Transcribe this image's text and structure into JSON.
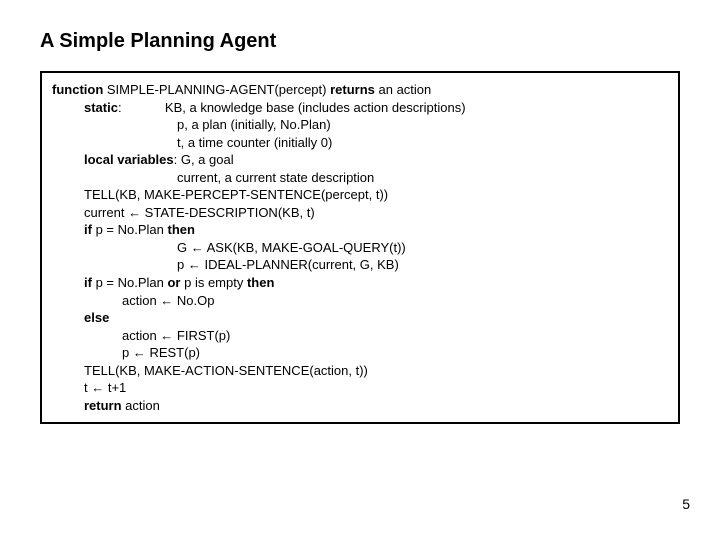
{
  "title": "A Simple Planning Agent",
  "page_number": "5",
  "box": {
    "border_color": "#000000",
    "background": "#ffffff"
  },
  "algo": {
    "l1a": "function",
    "l1b": " SIMPLE-PLANNING-AGENT(percept) ",
    "l1c": "returns",
    "l1d": " an action",
    "l2a": "static",
    "l2b": ":            KB, a knowledge base (includes action descriptions)",
    "l3": "p, a plan (initially, No.Plan)",
    "l4": "t, a time counter (initially 0)",
    "l5a": "local variables",
    "l5b": ": G, a goal",
    "l6": "current, a current state description",
    "l7": "TELL(KB, MAKE-PERCEPT-SENTENCE(percept, t))",
    "l8": "current ← STATE-DESCRIPTION(KB, t)",
    "l9a": "if",
    "l9b": " p = No.Plan ",
    "l9c": "then",
    "l10": "G ← ASK(KB, MAKE-GOAL-QUERY(t))",
    "l11": "p ← IDEAL-PLANNER(current, G, KB)",
    "l12a": "if",
    "l12b": " p = No.Plan ",
    "l12c": "or",
    "l12d": " p is empty ",
    "l12e": "then",
    "l13": "action ← No.Op",
    "l14": "else",
    "l15": "action ← FIRST(p)",
    "l16": "p ← REST(p)",
    "l17": "TELL(KB, MAKE-ACTION-SENTENCE(action, t))",
    "l18": "t ← t+1",
    "l19a": "return",
    "l19b": " action"
  }
}
